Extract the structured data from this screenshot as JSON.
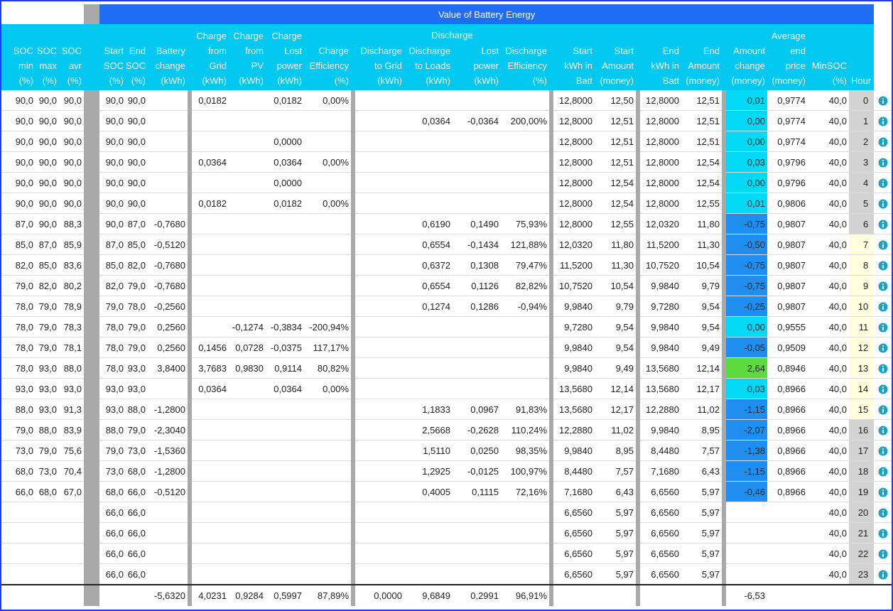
{
  "title": "Value of Battery Energy",
  "group_label": "Discharge",
  "columns": [
    [
      "SOC",
      "min",
      "(%)"
    ],
    [
      "SOC",
      "max",
      "(%)"
    ],
    [
      "SOC",
      "avr",
      "(%)"
    ],
    [
      "Start",
      "SOC",
      "(%)"
    ],
    [
      "End",
      "SOC",
      "(%)"
    ],
    [
      "Battery",
      "change",
      "(kWh)"
    ],
    [
      "Charge",
      "from",
      "Grid",
      "(kWh)"
    ],
    [
      "Charge",
      "from",
      "PV",
      "(kWh)"
    ],
    [
      "Charge",
      "Lost",
      "power",
      "(kWh)"
    ],
    [
      "Charge",
      "Efficiency",
      "(%)"
    ],
    [
      "Discharge",
      "to Grid",
      "(kWh)"
    ],
    [
      "Discharge",
      "to Loads",
      "(kWh)"
    ],
    [
      "Lost",
      "power",
      "(kWh)"
    ],
    [
      "Discharge",
      "Efficiency",
      "(%)"
    ],
    [
      "Start",
      "kWh in",
      "Batt"
    ],
    [
      "Start",
      "Amount",
      "(money)"
    ],
    [
      "End",
      "kWh in",
      "Batt"
    ],
    [
      "End",
      "Amount",
      "(money)"
    ],
    [
      "Amount",
      "change",
      "(money)"
    ],
    [
      "Average",
      "end",
      "price",
      "(money)"
    ],
    [
      "MinSOC",
      "(%)"
    ],
    [
      "Hour"
    ]
  ],
  "rows": [
    [
      "90,0",
      "90,0",
      "90,0",
      "90,0",
      "90,0",
      null,
      "0,0182",
      null,
      "0,0182",
      "0,00%",
      null,
      null,
      null,
      null,
      "12,8000",
      "12,50",
      "12,8000",
      "12,51",
      "0,01",
      "0,9774",
      "40,0",
      "0"
    ],
    [
      "90,0",
      "90,0",
      "90,0",
      "90,0",
      "90,0",
      null,
      null,
      null,
      null,
      null,
      null,
      "0,0364",
      "-0,0364",
      "200,00%",
      "12,8000",
      "12,51",
      "12,8000",
      "12,51",
      "0,00",
      "0,9774",
      "40,0",
      "1"
    ],
    [
      "90,0",
      "90,0",
      "90,0",
      "90,0",
      "90,0",
      null,
      null,
      null,
      "0,0000",
      null,
      null,
      null,
      null,
      null,
      "12,8000",
      "12,51",
      "12,8000",
      "12,51",
      "0,00",
      "0,9774",
      "40,0",
      "2"
    ],
    [
      "90,0",
      "90,0",
      "90,0",
      "90,0",
      "90,0",
      null,
      "0,0364",
      null,
      "0,0364",
      "0,00%",
      null,
      null,
      null,
      null,
      "12,8000",
      "12,51",
      "12,8000",
      "12,54",
      "0,03",
      "0,9796",
      "40,0",
      "3"
    ],
    [
      "90,0",
      "90,0",
      "90,0",
      "90,0",
      "90,0",
      null,
      null,
      null,
      "0,0000",
      null,
      null,
      null,
      null,
      null,
      "12,8000",
      "12,54",
      "12,8000",
      "12,54",
      "0,00",
      "0,9796",
      "40,0",
      "4"
    ],
    [
      "90,0",
      "90,0",
      "90,0",
      "90,0",
      "90,0",
      null,
      "0,0182",
      null,
      "0,0182",
      "0,00%",
      null,
      null,
      null,
      null,
      "12,8000",
      "12,54",
      "12,8000",
      "12,55",
      "0,01",
      "0,9806",
      "40,0",
      "5"
    ],
    [
      "87,0",
      "90,0",
      "88,3",
      "90,0",
      "87,0",
      "-0,7680",
      null,
      null,
      null,
      null,
      null,
      "0,6190",
      "0,1490",
      "75,93%",
      "12,8000",
      "12,55",
      "12,0320",
      "11,80",
      "-0,75",
      "0,9807",
      "40,0",
      "6"
    ],
    [
      "85,0",
      "87,0",
      "85,9",
      "87,0",
      "85,0",
      "-0,5120",
      null,
      null,
      null,
      null,
      null,
      "0,6554",
      "-0,1434",
      "121,88%",
      "12,0320",
      "11,80",
      "11,5200",
      "11,30",
      "-0,50",
      "0,9807",
      "40,0",
      "7"
    ],
    [
      "82,0",
      "85,0",
      "83,6",
      "85,0",
      "82,0",
      "-0,7680",
      null,
      null,
      null,
      null,
      null,
      "0,6372",
      "0,1308",
      "79,47%",
      "11,5200",
      "11,30",
      "10,7520",
      "10,54",
      "-0,75",
      "0,9807",
      "40,0",
      "8"
    ],
    [
      "79,0",
      "82,0",
      "80,2",
      "82,0",
      "79,0",
      "-0,7680",
      null,
      null,
      null,
      null,
      null,
      "0,6554",
      "0,1126",
      "82,82%",
      "10,7520",
      "10,54",
      "9,9840",
      "9,79",
      "-0,75",
      "0,9807",
      "40,0",
      "9"
    ],
    [
      "78,0",
      "79,0",
      "78,9",
      "79,0",
      "78,0",
      "-0,2560",
      null,
      null,
      null,
      null,
      null,
      "0,1274",
      "0,1286",
      "-0,94%",
      "9,9840",
      "9,79",
      "9,7280",
      "9,54",
      "-0,25",
      "0,9807",
      "40,0",
      "10"
    ],
    [
      "78,0",
      "79,0",
      "78,3",
      "78,0",
      "79,0",
      "0,2560",
      null,
      "-0,1274",
      "-0,3834",
      "-200,94%",
      null,
      null,
      null,
      null,
      "9,7280",
      "9,54",
      "9,9840",
      "9,54",
      "0,00",
      "0,9555",
      "40,0",
      "11"
    ],
    [
      "78,0",
      "79,0",
      "78,1",
      "78,0",
      "79,0",
      "0,2560",
      "0,1456",
      "0,0728",
      "-0,0375",
      "117,17%",
      null,
      null,
      null,
      null,
      "9,9840",
      "9,54",
      "9,9840",
      "9,49",
      "-0,05",
      "0,9509",
      "40,0",
      "12"
    ],
    [
      "78,0",
      "93,0",
      "88,0",
      "78,0",
      "93,0",
      "3,8400",
      "3,7683",
      "0,9830",
      "0,9114",
      "80,82%",
      null,
      null,
      null,
      null,
      "9,9840",
      "9,49",
      "13,5680",
      "12,14",
      "2,64",
      "0,8946",
      "40,0",
      "13"
    ],
    [
      "93,0",
      "93,0",
      "93,0",
      "93,0",
      "93,0",
      null,
      "0,0364",
      null,
      "0,0364",
      "0,00%",
      null,
      null,
      null,
      null,
      "13,5680",
      "12,14",
      "13,5680",
      "12,17",
      "0,03",
      "0,8966",
      "40,0",
      "14"
    ],
    [
      "88,0",
      "93,0",
      "91,3",
      "93,0",
      "88,0",
      "-1,2800",
      null,
      null,
      null,
      null,
      null,
      "1,1833",
      "0,0967",
      "91,83%",
      "13,5680",
      "12,17",
      "12,2880",
      "11,02",
      "-1,15",
      "0,8966",
      "40,0",
      "15"
    ],
    [
      "79,0",
      "88,0",
      "83,9",
      "88,0",
      "79,0",
      "-2,3040",
      null,
      null,
      null,
      null,
      null,
      "2,5668",
      "-0,2628",
      "110,24%",
      "12,2880",
      "11,02",
      "9,9840",
      "8,95",
      "-2,07",
      "0,8966",
      "40,0",
      "16"
    ],
    [
      "73,0",
      "79,0",
      "75,6",
      "79,0",
      "73,0",
      "-1,5360",
      null,
      null,
      null,
      null,
      null,
      "1,5110",
      "0,0250",
      "98,35%",
      "9,9840",
      "8,95",
      "8,4480",
      "7,57",
      "-1,38",
      "0,8966",
      "40,0",
      "17"
    ],
    [
      "68,0",
      "73,0",
      "70,4",
      "73,0",
      "68,0",
      "-1,2800",
      null,
      null,
      null,
      null,
      null,
      "1,2925",
      "-0,0125",
      "100,97%",
      "8,4480",
      "7,57",
      "7,1680",
      "6,43",
      "-1,15",
      "0,8966",
      "40,0",
      "18"
    ],
    [
      "66,0",
      "68,0",
      "67,0",
      "68,0",
      "66,0",
      "-0,5120",
      null,
      null,
      null,
      null,
      null,
      "0,4005",
      "0,1115",
      "72,16%",
      "7,1680",
      "6,43",
      "6,6560",
      "5,97",
      "-0,46",
      "0,8966",
      "40,0",
      "19"
    ],
    [
      null,
      null,
      null,
      "66,0",
      "66,0",
      null,
      null,
      null,
      null,
      null,
      null,
      null,
      null,
      null,
      "6,6560",
      "5,97",
      "6,6560",
      "5,97",
      null,
      null,
      "40,0",
      "20"
    ],
    [
      null,
      null,
      null,
      "66,0",
      "66,0",
      null,
      null,
      null,
      null,
      null,
      null,
      null,
      null,
      null,
      "6,6560",
      "5,97",
      "6,6560",
      "5,97",
      null,
      null,
      "40,0",
      "21"
    ],
    [
      null,
      null,
      null,
      "66,0",
      "66,0",
      null,
      null,
      null,
      null,
      null,
      null,
      null,
      null,
      null,
      "6,6560",
      "5,97",
      "6,6560",
      "5,97",
      null,
      null,
      "40,0",
      "22"
    ],
    [
      null,
      null,
      null,
      "66,0",
      "66,0",
      null,
      null,
      null,
      null,
      null,
      null,
      null,
      null,
      null,
      "6,6560",
      "5,97",
      "6,6560",
      "5,97",
      null,
      null,
      "40,0",
      "23"
    ]
  ],
  "totals": [
    null,
    null,
    null,
    null,
    null,
    "-5,6320",
    "4,0231",
    "0,9284",
    "0,5997",
    "87,89%",
    "0,0000",
    "9,6849",
    "0,2991",
    "96,91%",
    null,
    null,
    null,
    null,
    "-6,53",
    null,
    null,
    null
  ],
  "amount_change_colors": [
    "#00d8f5",
    "#00d8f5",
    "#00d8f5",
    "#00d8f5",
    "#00d8f5",
    "#00d8f5",
    "#1e8ef0",
    "#1e8ef0",
    "#1e8ef0",
    "#1e8ef0",
    "#1e8ef0",
    "#00d8f5",
    "#1e8ef0",
    "#5cdc3c",
    "#00d8f5",
    "#1e8ef0",
    "#1e8ef0",
    "#1e8ef0",
    "#1e8ef0",
    "#1e8ef0",
    null,
    null,
    null,
    null
  ],
  "hour_colors": [
    "#d3d3d3",
    "#d3d3d3",
    "#d3d3d3",
    "#d3d3d3",
    "#d3d3d3",
    "#d3d3d3",
    "#d3d3d3",
    "#ffffe0",
    "#ffffe0",
    "#ffffe0",
    "#ffffe0",
    "#ffffe0",
    "#ffffe0",
    "#ffffe0",
    "#ffffe0",
    "#ffffe0",
    "#d3d3d3",
    "#d3d3d3",
    "#d3d3d3",
    "#d3d3d3",
    "#d3d3d3",
    "#d3d3d3",
    "#d3d3d3",
    "#d3d3d3"
  ]
}
